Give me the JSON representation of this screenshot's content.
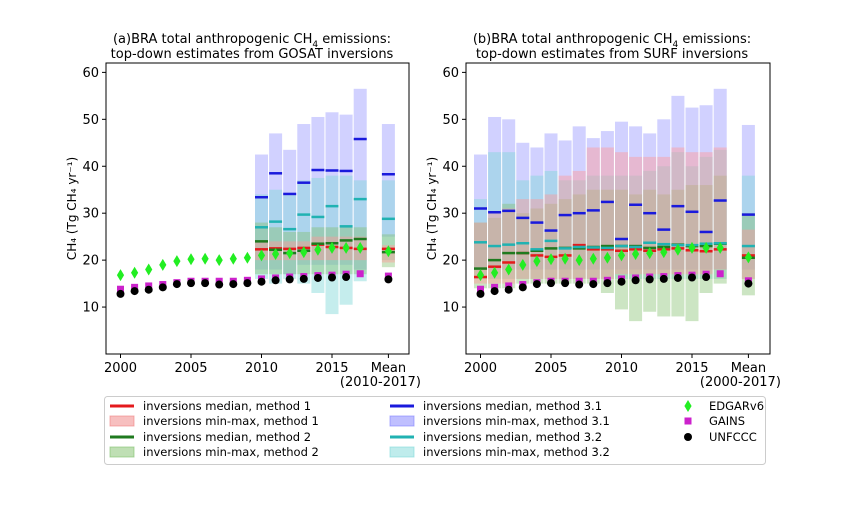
{
  "chart_data": [
    {
      "type": "bar",
      "panel": "a",
      "title_line1": "(a)BRA total anthropogenic CH",
      "title_line1_sub": "4",
      "title_line1_end": " emissions:",
      "title_line2": "top-down estimates from GOSAT inversions",
      "ylabel": "CH₄ (Tg CH₄ yr⁻¹)",
      "ylim": [
        0,
        62
      ],
      "yticks": [
        "10",
        "20",
        "30",
        "40",
        "50",
        "60"
      ],
      "xticks": [
        "2000",
        "2005",
        "2010",
        "2015",
        "Mean"
      ],
      "mean_label": "(2010-2017)",
      "years": [
        2000,
        2001,
        2002,
        2003,
        2004,
        2005,
        2006,
        2007,
        2008,
        2009,
        2010,
        2011,
        2012,
        2013,
        2014,
        2015,
        2016,
        2017
      ],
      "edgar": [
        16.8,
        17.3,
        18.0,
        19.0,
        19.8,
        20.2,
        20.3,
        20.0,
        20.3,
        20.5,
        21.0,
        21.3,
        21.5,
        21.7,
        22.2,
        22.6,
        22.6,
        22.6
      ],
      "gains": [
        13.8,
        14.2,
        14.5,
        14.8,
        15.2,
        15.5,
        15.5,
        15.5,
        15.5,
        15.7,
        16.0,
        16.2,
        16.4,
        16.5,
        16.7,
        16.8,
        17.0,
        17.1
      ],
      "unfccc": [
        12.8,
        13.4,
        13.7,
        14.2,
        14.9,
        15.1,
        15.1,
        14.8,
        14.9,
        15.1,
        15.4,
        15.7,
        15.9,
        16.0,
        16.2,
        16.3,
        16.4,
        null
      ],
      "inv_years": [
        2010,
        2011,
        2012,
        2013,
        2014,
        2015,
        2016,
        2017
      ],
      "m1_min": [
        20,
        20,
        20,
        20,
        20,
        20,
        20,
        20
      ],
      "m1_max": [
        24,
        24,
        24,
        24,
        25,
        25,
        25,
        25
      ],
      "m1_med": [
        22.3,
        22.5,
        22.4,
        22.6,
        23.3,
        22.8,
        22.6,
        22.4
      ],
      "m2_min": [
        17,
        17,
        17,
        17,
        17,
        17,
        17,
        17
      ],
      "m2_max": [
        28,
        27,
        26,
        26,
        27,
        27,
        27,
        27
      ],
      "m2_med": [
        24.0,
        22.2,
        21.5,
        22.0,
        23.5,
        23.6,
        24.2,
        24.5
      ],
      "m31_min": [
        18,
        18,
        17,
        19,
        19,
        19,
        19,
        18
      ],
      "m31_max": [
        42.5,
        47,
        43.5,
        49,
        50.5,
        51.5,
        51,
        56.5
      ],
      "m31_med": [
        33.4,
        38.5,
        34.1,
        36.5,
        39.2,
        39.1,
        39.0,
        45.8
      ],
      "m32_min": [
        16,
        15,
        16,
        15,
        13,
        8.5,
        10.5,
        15.5
      ],
      "m32_max": [
        34,
        35,
        34,
        37,
        37.5,
        38,
        38,
        37
      ],
      "m32_med": [
        27.0,
        28.2,
        26.6,
        29.7,
        29.2,
        31.5,
        27.2,
        33.0
      ],
      "mean": {
        "edgar": 21.9,
        "gains": 16.6,
        "unfccc": 15.9,
        "m1": [
          19.5,
          23.2,
          22.4
        ],
        "m2": [
          18.5,
          25.5,
          21.7
        ],
        "m31": [
          25.0,
          49.0,
          38.3
        ],
        "m32": [
          20.0,
          37.0,
          28.8
        ]
      }
    },
    {
      "type": "bar",
      "panel": "b",
      "title_line1": "(b)BRA total anthropogenic CH",
      "title_line1_sub": "4",
      "title_line1_end": " emissions:",
      "title_line2": "top-down estimates from SURF inversions",
      "ylabel": "CH₄ (Tg CH₄ yr⁻¹)",
      "ylim": [
        0,
        62
      ],
      "yticks": [
        "10",
        "20",
        "30",
        "40",
        "50",
        "60"
      ],
      "xticks": [
        "2000",
        "2005",
        "2010",
        "2015",
        "Mean"
      ],
      "mean_label": "(2000-2017)",
      "years": [
        2000,
        2001,
        2002,
        2003,
        2004,
        2005,
        2006,
        2007,
        2008,
        2009,
        2010,
        2011,
        2012,
        2013,
        2014,
        2015,
        2016,
        2017
      ],
      "edgar": [
        16.8,
        17.3,
        18.0,
        19.0,
        19.8,
        20.2,
        20.3,
        20.0,
        20.3,
        20.5,
        21.0,
        21.3,
        21.5,
        21.7,
        22.2,
        22.6,
        22.6,
        22.6
      ],
      "gains": [
        13.8,
        14.2,
        14.5,
        14.8,
        15.2,
        15.5,
        15.5,
        15.5,
        15.5,
        15.7,
        16.0,
        16.2,
        16.4,
        16.5,
        16.7,
        16.8,
        17.0,
        17.1
      ],
      "unfccc": [
        12.8,
        13.4,
        13.7,
        14.2,
        14.9,
        15.1,
        15.1,
        14.8,
        14.9,
        15.1,
        15.4,
        15.7,
        15.9,
        16.0,
        16.2,
        16.3,
        16.4,
        null
      ],
      "inv_years": [
        2000,
        2001,
        2002,
        2003,
        2004,
        2005,
        2006,
        2007,
        2008,
        2009,
        2010,
        2011,
        2012,
        2013,
        2014,
        2015,
        2016,
        2017
      ],
      "m1_min": [
        15,
        15,
        15,
        16,
        16,
        16,
        16,
        16,
        16,
        16,
        17,
        17,
        17,
        17,
        17,
        17,
        17,
        18
      ],
      "m1_max": [
        28,
        30,
        31,
        33,
        33,
        34,
        38,
        39,
        44,
        44,
        43,
        42,
        42,
        42,
        44,
        43,
        43,
        44
      ],
      "m1_med": [
        16.4,
        18.6,
        19.5,
        21.5,
        21.0,
        20.7,
        21.0,
        23.2,
        22.3,
        22.3,
        22.0,
        22.3,
        22.0,
        22.3,
        22.5,
        22.1,
        21.9,
        22.3
      ],
      "m2_min": [
        14,
        14,
        14,
        15,
        15,
        15,
        15,
        15,
        15,
        13,
        9.5,
        7,
        9,
        8,
        8,
        7,
        13,
        15
      ],
      "m2_max": [
        28,
        29,
        32,
        30,
        31,
        32,
        33,
        34,
        35,
        35,
        35,
        34,
        35,
        34,
        35,
        36,
        36,
        38
      ],
      "m2_med": [
        18.2,
        20.0,
        21.5,
        21.5,
        22.0,
        22.5,
        22.6,
        22.5,
        22.8,
        23.0,
        23.0,
        23.0,
        22.6,
        22.8,
        23.3,
        23.0,
        23.0,
        23.5
      ],
      "m31_min": [
        18,
        18,
        18,
        18,
        18,
        18,
        18,
        18,
        18,
        18,
        18,
        18,
        18,
        18,
        18,
        18,
        18,
        18
      ],
      "m31_max": [
        42.5,
        50.5,
        50,
        45,
        44,
        47,
        45.5,
        48.5,
        46,
        47.5,
        49.5,
        48.5,
        47,
        50,
        55,
        52.5,
        53,
        56.5
      ],
      "m31_med": [
        31.0,
        30.2,
        30.5,
        29.0,
        28.0,
        26.3,
        29.6,
        30.0,
        30.6,
        32.4,
        24.5,
        31.8,
        30.0,
        26.5,
        31.5,
        30.3,
        26.0,
        32.7
      ],
      "m32_min": [
        16,
        16,
        16,
        16,
        16,
        16,
        16,
        16,
        16,
        16,
        16,
        16,
        16,
        16,
        16,
        16,
        16,
        16
      ],
      "m32_max": [
        33,
        43,
        43,
        37,
        38,
        39,
        37,
        37,
        38,
        38,
        38,
        38,
        39,
        40,
        43,
        40,
        42,
        43.5
      ],
      "m32_med": [
        23.8,
        23.0,
        23.3,
        23.6,
        22.3,
        24.1,
        22.5,
        22.8,
        22.7,
        22.6,
        23.0,
        22.8,
        23.7,
        23.4,
        23.2,
        23.2,
        23.5,
        23.6
      ],
      "mean": {
        "edgar": 20.6,
        "gains": 15.6,
        "unfccc": 15.0,
        "m1": [
          16.0,
          26.5,
          21.0
        ],
        "m2": [
          12.5,
          30.0,
          20.5
        ],
        "m31": [
          18.0,
          48.8,
          29.7
        ],
        "m32": [
          16.0,
          38.0,
          23.0
        ]
      }
    }
  ],
  "legend": {
    "items": [
      {
        "label": "inversions median, method 1",
        "kind": "line",
        "color": "#e41a1c"
      },
      {
        "label": "inversions min-max, method 1",
        "kind": "patch",
        "color": "#f08080"
      },
      {
        "label": "inversions median, method 2",
        "kind": "line",
        "color": "#1f7a1f"
      },
      {
        "label": "inversions min-max, method 2",
        "kind": "patch",
        "color": "#7fbf6a"
      },
      {
        "label": "inversions median, method 3.1",
        "kind": "line",
        "color": "#1a1adc"
      },
      {
        "label": "inversions min-max, method 3.1",
        "kind": "patch",
        "color": "#8080ff"
      },
      {
        "label": "inversions median, method 3.2",
        "kind": "line",
        "color": "#20b2b2"
      },
      {
        "label": "inversions min-max, method 3.2",
        "kind": "patch",
        "color": "#7fdada"
      },
      {
        "label": "EDGARv6",
        "kind": "diamond",
        "color": "#22ee22"
      },
      {
        "label": "GAINS",
        "kind": "square",
        "color": "#cc22cc"
      },
      {
        "label": "UNFCCC",
        "kind": "circle",
        "color": "#000000"
      }
    ]
  },
  "colors": {
    "m1_fill": "#ff9999",
    "m1_line": "#e41a1c",
    "m2_fill": "#7fbf6a",
    "m2_line": "#1f7a1f",
    "m31_fill": "#8c8cff",
    "m31_line": "#1a1adc",
    "m32_fill": "#7fd8d8",
    "m32_line": "#20b2b2",
    "edgar": "#22ee22",
    "gains": "#cc22cc",
    "unfccc": "#000000"
  }
}
